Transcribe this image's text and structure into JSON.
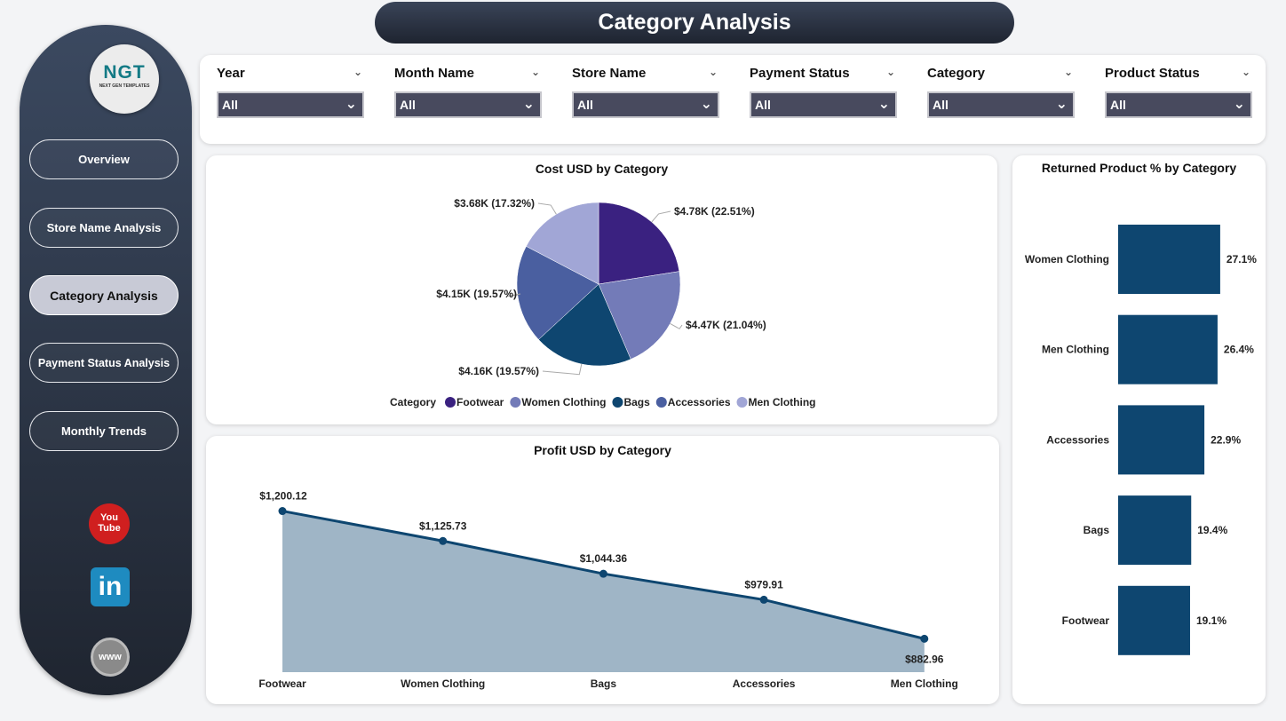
{
  "header": {
    "title": "Category Analysis"
  },
  "sidebar": {
    "logo": "NGT",
    "logo_sub": "NEXT GEN TEMPLATES",
    "items": [
      {
        "label": "Overview"
      },
      {
        "label": "Store Name Analysis"
      },
      {
        "label": "Category Analysis",
        "active": true
      },
      {
        "label": "Payment Status Analysis"
      },
      {
        "label": "Monthly Trends"
      }
    ],
    "social": [
      "youtube-icon",
      "linkedin-icon",
      "globe-icon"
    ],
    "youtube_text": "You Tube",
    "linkedin_text": "in",
    "web_text": "www"
  },
  "filters": [
    {
      "label": "Year",
      "value": "All"
    },
    {
      "label": "Month Name",
      "value": "All"
    },
    {
      "label": "Store Name",
      "value": "All"
    },
    {
      "label": "Payment Status",
      "value": "All"
    },
    {
      "label": "Category",
      "value": "All"
    },
    {
      "label": "Product Status",
      "value": "All"
    }
  ],
  "chart_data": [
    {
      "type": "pie",
      "title": "Cost USD by Category",
      "legend_title": "Category",
      "legend_position": "bottom",
      "slices": [
        {
          "name": "Footwear",
          "value": 4.78,
          "label": "$4.78K (22.51%)",
          "color": "#3a2180"
        },
        {
          "name": "Women Clothing",
          "value": 4.47,
          "label": "$4.47K (21.04%)",
          "color": "#737bb8"
        },
        {
          "name": "Bags",
          "value": 4.16,
          "label": "$4.16K (19.57%)",
          "color": "#0e4670"
        },
        {
          "name": "Accessories",
          "value": 4.15,
          "label": "$4.15K (19.57%)",
          "color": "#4a5fa0"
        },
        {
          "name": "Men Clothing",
          "value": 3.68,
          "label": "$3.68K (17.32%)",
          "color": "#a1a6d6"
        }
      ]
    },
    {
      "type": "area",
      "title": "Profit USD by Category",
      "categories": [
        "Footwear",
        "Women Clothing",
        "Bags",
        "Accessories",
        "Men Clothing"
      ],
      "values": [
        1200.12,
        1125.73,
        1044.36,
        979.91,
        882.96
      ],
      "labels": [
        "$1,200.12",
        "$1,125.73",
        "$1,044.36",
        "$979.91",
        "$882.96"
      ],
      "ylim": [
        800,
        1230
      ],
      "line_color": "#0e4670",
      "fill_color": "#9fb5c6"
    },
    {
      "type": "bar",
      "orientation": "horizontal",
      "title": "Returned Product % by Category",
      "categories": [
        "Women Clothing",
        "Men Clothing",
        "Accessories",
        "Bags",
        "Footwear"
      ],
      "values": [
        27.1,
        26.4,
        22.9,
        19.4,
        19.1
      ],
      "labels": [
        "27.1%",
        "26.4%",
        "22.9%",
        "19.4%",
        "19.1%"
      ],
      "color": "#0e4670"
    }
  ]
}
